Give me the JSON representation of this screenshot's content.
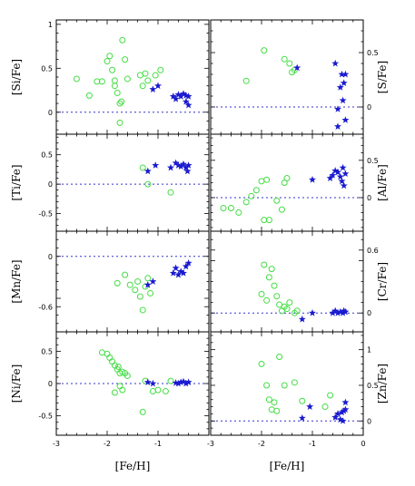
{
  "figure": {
    "x_axis_label": "[Fe/H]"
  },
  "colors": {
    "circle_series": "#44dd44",
    "star_series": "#1a1ad0",
    "reference_line": "#3333cc",
    "frame": "#000000"
  },
  "chart_data": [
    {
      "type": "scatter",
      "panel": "Si",
      "ylabel": "[Si/Fe]",
      "ylabel_side": "left",
      "xlim": [
        -3,
        0
      ],
      "ylim": [
        -0.25,
        1.05
      ],
      "yticks": [
        0,
        0.5,
        1
      ],
      "ytick_labels": [
        "0",
        "0.5",
        "1"
      ],
      "ref_y": 0,
      "series": [
        {
          "marker": "circle",
          "points": [
            [
              -2.6,
              0.38
            ],
            [
              -2.35,
              0.19
            ],
            [
              -2.2,
              0.35
            ],
            [
              -2.1,
              0.35
            ],
            [
              -2.0,
              0.58
            ],
            [
              -1.95,
              0.64
            ],
            [
              -1.9,
              0.48
            ],
            [
              -1.85,
              0.36
            ],
            [
              -1.85,
              0.3
            ],
            [
              -1.8,
              0.22
            ],
            [
              -1.75,
              0.1
            ],
            [
              -1.72,
              0.12
            ],
            [
              -1.7,
              0.82
            ],
            [
              -1.65,
              0.6
            ],
            [
              -1.6,
              0.38
            ],
            [
              -1.75,
              -0.12
            ],
            [
              -1.35,
              0.42
            ],
            [
              -1.3,
              0.3
            ],
            [
              -1.25,
              0.44
            ],
            [
              -1.2,
              0.36
            ],
            [
              -1.05,
              0.42
            ],
            [
              -0.95,
              0.48
            ]
          ]
        },
        {
          "marker": "star",
          "points": [
            [
              -1.1,
              0.26
            ],
            [
              -1.0,
              0.3
            ],
            [
              -0.7,
              0.18
            ],
            [
              -0.65,
              0.15
            ],
            [
              -0.6,
              0.2
            ],
            [
              -0.55,
              0.18
            ],
            [
              -0.5,
              0.21
            ],
            [
              -0.45,
              0.19
            ],
            [
              -0.45,
              0.12
            ],
            [
              -0.4,
              0.18
            ],
            [
              -0.4,
              0.08
            ]
          ]
        }
      ]
    },
    {
      "type": "scatter",
      "panel": "S",
      "ylabel": "[S/Fe]",
      "ylabel_side": "right",
      "xlim": [
        -3,
        0
      ],
      "ylim": [
        -0.25,
        0.8
      ],
      "yticks": [
        0,
        0.5
      ],
      "ytick_labels": [
        "0",
        "0.5"
      ],
      "ref_y": 0,
      "series": [
        {
          "marker": "circle",
          "points": [
            [
              -2.3,
              0.24
            ],
            [
              -1.95,
              0.52
            ],
            [
              -1.55,
              0.44
            ],
            [
              -1.45,
              0.4
            ],
            [
              -1.4,
              0.32
            ],
            [
              -1.35,
              0.34
            ]
          ]
        },
        {
          "marker": "star",
          "points": [
            [
              -1.3,
              0.36
            ],
            [
              -0.55,
              0.4
            ],
            [
              -0.5,
              -0.02
            ],
            [
              -0.5,
              -0.18
            ],
            [
              -0.45,
              0.18
            ],
            [
              -0.42,
              0.3
            ],
            [
              -0.4,
              0.06
            ],
            [
              -0.38,
              0.22
            ],
            [
              -0.35,
              0.3
            ],
            [
              -0.35,
              -0.12
            ]
          ]
        }
      ]
    },
    {
      "type": "scatter",
      "panel": "Ti",
      "ylabel": "[Ti/Fe]",
      "ylabel_side": "left",
      "xlim": [
        -3,
        0
      ],
      "ylim": [
        -0.8,
        0.85
      ],
      "yticks": [
        -0.5,
        0,
        0.5
      ],
      "ytick_labels": [
        "-0.5",
        "0",
        "0.5"
      ],
      "ref_y": 0,
      "series": [
        {
          "marker": "circle",
          "points": [
            [
              -1.3,
              0.28
            ],
            [
              -1.2,
              0.0
            ],
            [
              -0.75,
              -0.14
            ]
          ]
        },
        {
          "marker": "star",
          "points": [
            [
              -1.2,
              0.22
            ],
            [
              -1.05,
              0.32
            ],
            [
              -0.75,
              0.28
            ],
            [
              -0.65,
              0.36
            ],
            [
              -0.6,
              0.32
            ],
            [
              -0.55,
              0.3
            ],
            [
              -0.5,
              0.34
            ],
            [
              -0.45,
              0.28
            ],
            [
              -0.42,
              0.22
            ],
            [
              -0.4,
              0.32
            ]
          ]
        }
      ]
    },
    {
      "type": "scatter",
      "panel": "Al",
      "ylabel": "[Al/Fe]",
      "ylabel_side": "right",
      "xlim": [
        -3,
        0
      ],
      "ylim": [
        -0.45,
        0.85
      ],
      "yticks": [
        0,
        0.5
      ],
      "ytick_labels": [
        "0",
        "0.5"
      ],
      "ref_y": 0,
      "series": [
        {
          "marker": "circle",
          "points": [
            [
              -2.75,
              -0.14
            ],
            [
              -2.6,
              -0.14
            ],
            [
              -2.45,
              -0.2
            ],
            [
              -2.3,
              -0.06
            ],
            [
              -2.2,
              0.02
            ],
            [
              -2.1,
              0.1
            ],
            [
              -2.0,
              0.22
            ],
            [
              -1.95,
              -0.3
            ],
            [
              -1.9,
              0.24
            ],
            [
              -1.85,
              -0.3
            ],
            [
              -1.7,
              -0.04
            ],
            [
              -1.6,
              -0.16
            ],
            [
              -1.55,
              0.2
            ],
            [
              -1.5,
              0.26
            ]
          ]
        },
        {
          "marker": "star",
          "points": [
            [
              -1.0,
              0.24
            ],
            [
              -0.65,
              0.26
            ],
            [
              -0.6,
              0.3
            ],
            [
              -0.55,
              0.36
            ],
            [
              -0.5,
              0.34
            ],
            [
              -0.45,
              0.28
            ],
            [
              -0.42,
              0.22
            ],
            [
              -0.4,
              0.4
            ],
            [
              -0.38,
              0.16
            ],
            [
              -0.35,
              0.32
            ]
          ]
        }
      ]
    },
    {
      "type": "scatter",
      "panel": "Mn",
      "ylabel": "[Mn/Fe]",
      "ylabel_side": "left",
      "xlim": [
        -3,
        0
      ],
      "ylim": [
        -0.9,
        0.3
      ],
      "yticks": [
        -0.6,
        0
      ],
      "ytick_labels": [
        "-0.6",
        "0"
      ],
      "ref_y": 0,
      "series": [
        {
          "marker": "circle",
          "points": [
            [
              -1.8,
              -0.32
            ],
            [
              -1.65,
              -0.22
            ],
            [
              -1.55,
              -0.34
            ],
            [
              -1.45,
              -0.4
            ],
            [
              -1.4,
              -0.3
            ],
            [
              -1.35,
              -0.48
            ],
            [
              -1.3,
              -0.64
            ],
            [
              -1.25,
              -0.36
            ],
            [
              -1.2,
              -0.26
            ],
            [
              -1.15,
              -0.44
            ]
          ]
        },
        {
          "marker": "star",
          "points": [
            [
              -1.2,
              -0.34
            ],
            [
              -1.1,
              -0.3
            ],
            [
              -0.7,
              -0.2
            ],
            [
              -0.65,
              -0.14
            ],
            [
              -0.6,
              -0.22
            ],
            [
              -0.55,
              -0.18
            ],
            [
              -0.5,
              -0.2
            ],
            [
              -0.45,
              -0.12
            ],
            [
              -0.4,
              -0.08
            ]
          ]
        }
      ]
    },
    {
      "type": "scatter",
      "panel": "Cr",
      "ylabel": "[Cr/Fe]",
      "ylabel_side": "right",
      "xlim": [
        -3,
        0
      ],
      "ylim": [
        -0.18,
        0.78
      ],
      "yticks": [
        0,
        0.6
      ],
      "ytick_labels": [
        "0",
        "0.6"
      ],
      "ref_y": 0,
      "series": [
        {
          "marker": "circle",
          "points": [
            [
              -2.0,
              0.18
            ],
            [
              -1.95,
              0.46
            ],
            [
              -1.9,
              0.12
            ],
            [
              -1.85,
              0.34
            ],
            [
              -1.8,
              0.42
            ],
            [
              -1.75,
              0.26
            ],
            [
              -1.7,
              0.16
            ],
            [
              -1.65,
              0.08
            ],
            [
              -1.6,
              0.02
            ],
            [
              -1.55,
              0.06
            ],
            [
              -1.5,
              0.04
            ],
            [
              -1.45,
              0.1
            ],
            [
              -1.35,
              0.0
            ],
            [
              -1.3,
              0.02
            ]
          ]
        },
        {
          "marker": "star",
          "points": [
            [
              -1.2,
              -0.06
            ],
            [
              -1.0,
              0.0
            ],
            [
              -0.6,
              0.0
            ],
            [
              -0.55,
              0.02
            ],
            [
              -0.5,
              0.0
            ],
            [
              -0.45,
              0.01
            ],
            [
              -0.4,
              0.0
            ],
            [
              -0.38,
              0.02
            ],
            [
              -0.35,
              0.01
            ]
          ]
        }
      ]
    },
    {
      "type": "scatter",
      "panel": "Ni",
      "ylabel": "[Ni/Fe]",
      "ylabel_side": "left",
      "xlim": [
        -3,
        0
      ],
      "ylim": [
        -0.8,
        0.8
      ],
      "yticks": [
        -0.5,
        0,
        0.5
      ],
      "ytick_labels": [
        "-0.5",
        "0",
        "0.5"
      ],
      "ref_y": 0,
      "series": [
        {
          "marker": "circle",
          "points": [
            [
              -2.1,
              0.48
            ],
            [
              -2.0,
              0.46
            ],
            [
              -1.95,
              0.4
            ],
            [
              -1.9,
              0.34
            ],
            [
              -1.85,
              0.28
            ],
            [
              -1.8,
              0.22
            ],
            [
              -1.78,
              0.26
            ],
            [
              -1.75,
              0.16
            ],
            [
              -1.7,
              0.18
            ],
            [
              -1.65,
              0.16
            ],
            [
              -1.6,
              0.12
            ],
            [
              -1.75,
              -0.04
            ],
            [
              -1.7,
              -0.1
            ],
            [
              -1.85,
              -0.14
            ],
            [
              -1.3,
              -0.44
            ],
            [
              -1.25,
              0.04
            ],
            [
              -1.1,
              -0.12
            ],
            [
              -1.0,
              -0.1
            ],
            [
              -0.85,
              -0.12
            ],
            [
              -0.75,
              0.04
            ]
          ]
        },
        {
          "marker": "star",
          "points": [
            [
              -1.2,
              0.02
            ],
            [
              -1.1,
              0.0
            ],
            [
              -0.65,
              0.01
            ],
            [
              -0.6,
              0.0
            ],
            [
              -0.55,
              0.02
            ],
            [
              -0.5,
              0.03
            ],
            [
              -0.45,
              0.0
            ],
            [
              -0.4,
              0.02
            ]
          ]
        }
      ]
    },
    {
      "type": "scatter",
      "panel": "Zn",
      "ylabel": "[Zn/Fe]",
      "ylabel_side": "right",
      "xlim": [
        -3,
        0
      ],
      "ylim": [
        -0.2,
        1.25
      ],
      "yticks": [
        0,
        0.5,
        1
      ],
      "ytick_labels": [
        "0",
        "0.5",
        "1"
      ],
      "ref_y": 0,
      "series": [
        {
          "marker": "circle",
          "points": [
            [
              -2.0,
              0.8
            ],
            [
              -1.9,
              0.5
            ],
            [
              -1.85,
              0.3
            ],
            [
              -1.8,
              0.16
            ],
            [
              -1.75,
              0.26
            ],
            [
              -1.7,
              0.14
            ],
            [
              -1.65,
              0.9
            ],
            [
              -1.55,
              0.5
            ],
            [
              -1.35,
              0.54
            ],
            [
              -1.2,
              0.28
            ],
            [
              -0.75,
              0.2
            ],
            [
              -0.65,
              0.36
            ]
          ]
        },
        {
          "marker": "star",
          "points": [
            [
              -1.2,
              0.04
            ],
            [
              -1.05,
              0.2
            ],
            [
              -0.55,
              0.05
            ],
            [
              -0.5,
              0.1
            ],
            [
              -0.45,
              0.02
            ],
            [
              -0.42,
              0.12
            ],
            [
              -0.4,
              0.0
            ],
            [
              -0.38,
              0.14
            ],
            [
              -0.35,
              0.16
            ],
            [
              -0.35,
              0.26
            ]
          ]
        }
      ]
    }
  ],
  "x_ticks": [
    -3,
    -2,
    -1,
    0
  ],
  "x_tick_labels": [
    "-3",
    "-2",
    "-1",
    "0"
  ]
}
